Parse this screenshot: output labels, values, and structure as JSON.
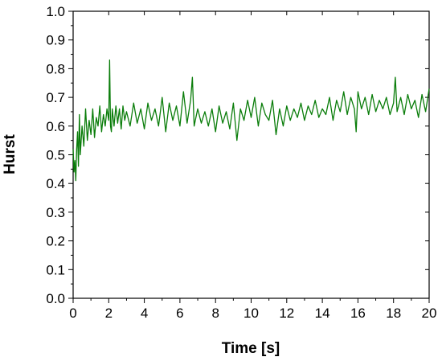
{
  "chart_data": {
    "type": "line",
    "title": "",
    "xlabel": "Time [s]",
    "ylabel": "Hurst",
    "xlim": [
      0,
      20
    ],
    "ylim": [
      0.0,
      1.0
    ],
    "x_ticks": [
      0,
      2,
      4,
      6,
      8,
      10,
      12,
      14,
      16,
      18,
      20
    ],
    "y_ticks": [
      "0.0",
      "0.1",
      "0.2",
      "0.3",
      "0.4",
      "0.5",
      "0.6",
      "0.7",
      "0.8",
      "0.9",
      "1.0"
    ],
    "grid": false,
    "legend": "none",
    "series": [
      {
        "color": "#0a7d0a",
        "x": [
          0.0,
          0.05,
          0.1,
          0.15,
          0.2,
          0.25,
          0.3,
          0.35,
          0.4,
          0.5,
          0.6,
          0.7,
          0.8,
          0.9,
          1.0,
          1.1,
          1.2,
          1.3,
          1.4,
          1.5,
          1.6,
          1.7,
          1.8,
          1.9,
          2.0,
          2.05,
          2.1,
          2.15,
          2.2,
          2.3,
          2.4,
          2.5,
          2.6,
          2.7,
          2.8,
          2.9,
          3.0,
          3.2,
          3.4,
          3.6,
          3.8,
          4.0,
          4.2,
          4.4,
          4.6,
          4.8,
          5.0,
          5.2,
          5.4,
          5.6,
          5.8,
          6.0,
          6.2,
          6.4,
          6.6,
          6.7,
          6.8,
          7.0,
          7.2,
          7.4,
          7.6,
          7.8,
          8.0,
          8.2,
          8.4,
          8.6,
          8.8,
          9.0,
          9.2,
          9.4,
          9.6,
          9.8,
          10.0,
          10.2,
          10.4,
          10.6,
          10.8,
          11.0,
          11.2,
          11.4,
          11.6,
          11.8,
          12.0,
          12.2,
          12.4,
          12.6,
          12.8,
          13.0,
          13.2,
          13.4,
          13.6,
          13.8,
          14.0,
          14.2,
          14.4,
          14.6,
          14.8,
          15.0,
          15.2,
          15.4,
          15.6,
          15.8,
          15.9,
          16.0,
          16.2,
          16.4,
          16.6,
          16.8,
          17.0,
          17.2,
          17.4,
          17.6,
          17.8,
          18.0,
          18.1,
          18.2,
          18.4,
          18.6,
          18.8,
          19.0,
          19.2,
          19.4,
          19.6,
          19.8,
          20.0
        ],
        "y": [
          0.52,
          0.44,
          0.48,
          0.41,
          0.52,
          0.58,
          0.46,
          0.64,
          0.5,
          0.6,
          0.53,
          0.66,
          0.55,
          0.62,
          0.57,
          0.66,
          0.56,
          0.63,
          0.6,
          0.67,
          0.58,
          0.64,
          0.6,
          0.66,
          0.62,
          0.83,
          0.6,
          0.58,
          0.66,
          0.6,
          0.67,
          0.61,
          0.66,
          0.59,
          0.67,
          0.62,
          0.65,
          0.6,
          0.68,
          0.61,
          0.66,
          0.59,
          0.68,
          0.62,
          0.66,
          0.6,
          0.7,
          0.58,
          0.68,
          0.62,
          0.67,
          0.6,
          0.72,
          0.61,
          0.69,
          0.77,
          0.6,
          0.66,
          0.61,
          0.65,
          0.6,
          0.66,
          0.58,
          0.67,
          0.61,
          0.65,
          0.59,
          0.68,
          0.55,
          0.66,
          0.62,
          0.69,
          0.63,
          0.7,
          0.6,
          0.68,
          0.64,
          0.62,
          0.69,
          0.57,
          0.66,
          0.6,
          0.67,
          0.62,
          0.66,
          0.63,
          0.68,
          0.62,
          0.67,
          0.64,
          0.69,
          0.63,
          0.66,
          0.64,
          0.7,
          0.62,
          0.69,
          0.65,
          0.72,
          0.64,
          0.7,
          0.66,
          0.58,
          0.72,
          0.66,
          0.7,
          0.64,
          0.71,
          0.65,
          0.69,
          0.66,
          0.7,
          0.64,
          0.68,
          0.77,
          0.65,
          0.7,
          0.64,
          0.71,
          0.66,
          0.69,
          0.63,
          0.71,
          0.65,
          0.73
        ]
      }
    ]
  }
}
